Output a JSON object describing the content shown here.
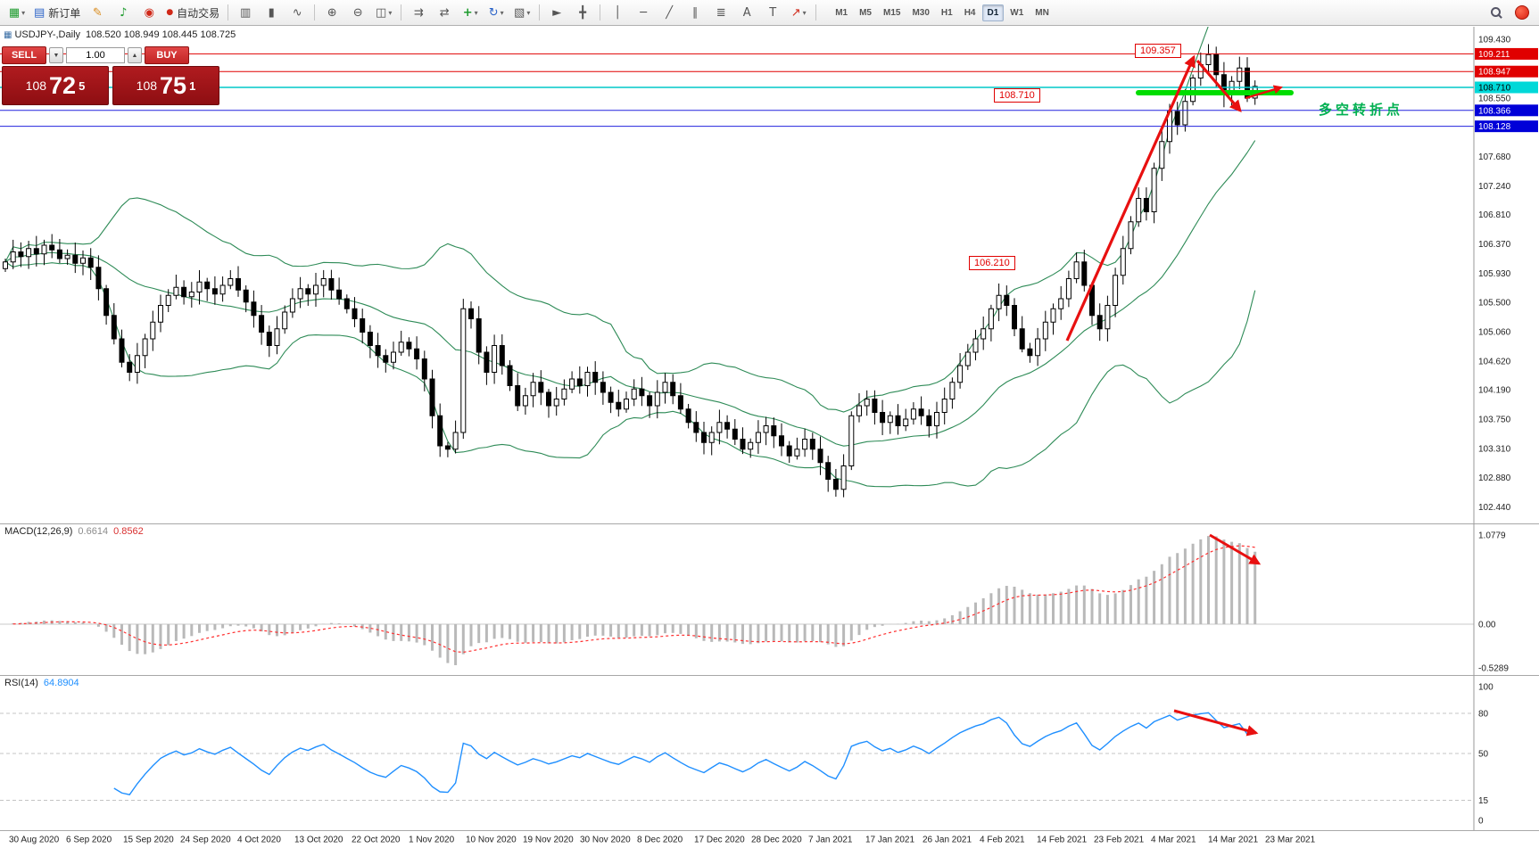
{
  "toolbar": {
    "new_order_label": "新订单",
    "autotrade_label": "自动交易",
    "timeframes": [
      "M1",
      "M5",
      "M15",
      "M30",
      "H1",
      "H4",
      "D1",
      "W1",
      "MN"
    ],
    "active_timeframe": "D1"
  },
  "icons": {
    "new_chart": "▦",
    "dropdown": "▾",
    "new_order": "▤",
    "metaeditor": "✎",
    "sound": "♪",
    "community": "◉",
    "autotrade_dot": "●",
    "bar_chart": "▥",
    "candles": "▮",
    "line_chart": "∿",
    "zoom_in": "⊕",
    "zoom_out": "⊖",
    "tile": "◫",
    "chart_shift": "⇉",
    "autoscroll": "⇄",
    "add_indicator": "+",
    "refresh": "↻",
    "template": "▧",
    "cursor": "►",
    "crosshair": "╋",
    "vline": "│",
    "hline": "─",
    "trendline": "╱",
    "channel": "∥",
    "fibonacci": "≣",
    "text_tool": "A",
    "label_tool": "T",
    "arrow_tool": "↗",
    "step_down": "▼",
    "step_up": "▲"
  },
  "chart_header": {
    "symbol": "USDJPY-,Daily",
    "ohlc": "108.520 108.949 108.445 108.725"
  },
  "trade_panel": {
    "sell_label": "SELL",
    "buy_label": "BUY",
    "volume": "1.00",
    "sell_big": "108",
    "sell_pips": "72",
    "sell_sup": "5",
    "buy_big": "108",
    "buy_pips": "75",
    "buy_sup": "1"
  },
  "annotations": {
    "peak_label": "109.357",
    "level_label": "108.710",
    "support_label": "106.210",
    "turning_point": "多空转折点"
  },
  "price_axis": {
    "gray_labels": [
      "109.430",
      "108.550",
      "107.680",
      "107.240",
      "106.810",
      "106.370",
      "105.930",
      "105.500",
      "105.060",
      "104.620",
      "104.190",
      "103.750",
      "103.310",
      "102.880",
      "102.440"
    ],
    "tags": [
      {
        "value": "109.211",
        "bg": "#e00000",
        "fg": "#ffffff"
      },
      {
        "value": "108.947",
        "bg": "#e00000",
        "fg": "#ffffff"
      },
      {
        "value": "108.710",
        "bg": "#00d8d8",
        "fg": "#000000"
      },
      {
        "value": "108.366",
        "bg": "#0000d8",
        "fg": "#ffffff"
      },
      {
        "value": "108.128",
        "bg": "#0000d8",
        "fg": "#ffffff"
      }
    ]
  },
  "levels": [
    {
      "price": 109.211,
      "color": "#e00000"
    },
    {
      "price": 108.947,
      "color": "#e00000"
    },
    {
      "price": 108.71,
      "color": "#00c8c8"
    },
    {
      "price": 108.366,
      "color": "#2222dd"
    },
    {
      "price": 108.128,
      "color": "#2222dd"
    }
  ],
  "macd_panel": {
    "label": "MACD(12,26,9)",
    "value_main": "0.6614",
    "value_signal": "0.8562",
    "axis_labels": [
      "1.0779",
      "0.00",
      "-0.5289"
    ],
    "axis_values": [
      1.0779,
      0,
      -0.5289
    ]
  },
  "rsi_panel": {
    "label": "RSI(14)",
    "value": "64.8904",
    "axis_labels": [
      "100",
      "80",
      "50",
      "15",
      "0"
    ],
    "axis_values": [
      100,
      80,
      50,
      15,
      0
    ],
    "levels": [
      80,
      50,
      15
    ]
  },
  "date_axis": [
    "30 Aug 2020",
    "6 Sep 2020",
    "15 Sep 2020",
    "24 Sep 2020",
    "4 Oct 2020",
    "13 Oct 2020",
    "22 Oct 2020",
    "1 Nov 2020",
    "10 Nov 2020",
    "19 Nov 2020",
    "30 Nov 2020",
    "8 Dec 2020",
    "17 Dec 2020",
    "28 Dec 2020",
    "7 Jan 2021",
    "17 Jan 2021",
    "26 Jan 2021",
    "4 Feb 2021",
    "14 Feb 2021",
    "23 Feb 2021",
    "4 Mar 2021",
    "14 Mar 2021",
    "23 Mar 2021"
  ],
  "chart_data": {
    "type": "candlestick",
    "symbol": "USDJPY",
    "timeframe": "Daily",
    "ohlc_current": {
      "open": 108.52,
      "high": 108.949,
      "low": 108.445,
      "close": 108.725
    },
    "price_range_shown": [
      102.44,
      109.43
    ],
    "peak_high": 109.357,
    "trough_low": 102.59,
    "closes": [
      106.1,
      106.25,
      106.18,
      106.3,
      106.22,
      106.35,
      106.28,
      106.15,
      106.2,
      106.08,
      106.16,
      106.02,
      105.7,
      105.3,
      104.95,
      104.6,
      104.45,
      104.7,
      104.95,
      105.2,
      105.45,
      105.6,
      105.72,
      105.58,
      105.65,
      105.8,
      105.7,
      105.62,
      105.75,
      105.85,
      105.68,
      105.5,
      105.3,
      105.05,
      104.85,
      105.1,
      105.35,
      105.55,
      105.7,
      105.62,
      105.75,
      105.85,
      105.68,
      105.55,
      105.4,
      105.25,
      105.05,
      104.85,
      104.7,
      104.6,
      104.75,
      104.9,
      104.8,
      104.65,
      104.35,
      103.8,
      103.35,
      103.3,
      103.55,
      105.4,
      105.25,
      104.75,
      104.45,
      104.85,
      104.55,
      104.25,
      103.95,
      104.1,
      104.3,
      104.15,
      103.95,
      104.05,
      104.2,
      104.35,
      104.25,
      104.45,
      104.3,
      104.15,
      104.0,
      103.9,
      104.05,
      104.2,
      104.1,
      103.95,
      104.15,
      104.3,
      104.1,
      103.9,
      103.7,
      103.55,
      103.4,
      103.55,
      103.7,
      103.6,
      103.45,
      103.3,
      103.4,
      103.55,
      103.65,
      103.5,
      103.35,
      103.2,
      103.3,
      103.45,
      103.3,
      103.1,
      102.85,
      102.7,
      103.05,
      103.8,
      103.95,
      104.05,
      103.85,
      103.7,
      103.8,
      103.65,
      103.75,
      103.9,
      103.8,
      103.65,
      103.85,
      104.05,
      104.3,
      104.55,
      104.75,
      104.95,
      105.1,
      105.4,
      105.6,
      105.45,
      105.1,
      104.8,
      104.7,
      104.95,
      105.2,
      105.4,
      105.55,
      105.85,
      106.1,
      105.75,
      105.3,
      105.1,
      105.45,
      105.9,
      106.3,
      106.7,
      107.05,
      106.85,
      107.5,
      107.9,
      108.35,
      108.15,
      108.5,
      108.85,
      109.05,
      109.2,
      108.9,
      108.6,
      108.8,
      109.0,
      108.55,
      108.725
    ],
    "indicators": [
      {
        "name": "Bollinger Bands",
        "period": 20,
        "deviation": 2,
        "color": "#2e8b57"
      },
      {
        "name": "MACD",
        "fast": 12,
        "slow": 26,
        "signal": 9,
        "current_main": 0.6614,
        "current_signal": 0.8562
      },
      {
        "name": "RSI",
        "period": 14,
        "current": 64.8904
      }
    ]
  }
}
